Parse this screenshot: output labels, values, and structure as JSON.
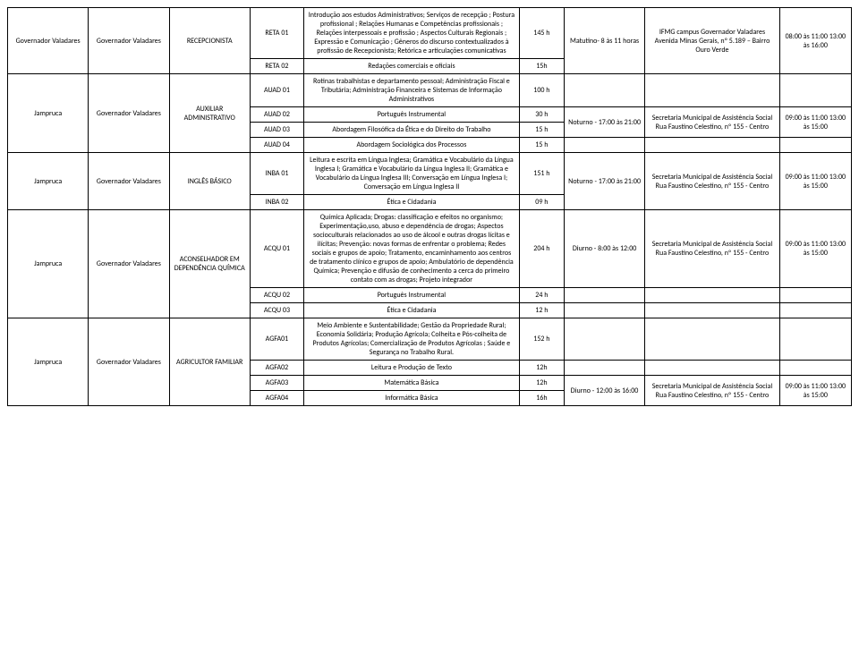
{
  "rows": [
    {
      "city": "Governador Valadares",
      "region": "Governador Valadares",
      "course": "RECEPCIONISTA",
      "mods": [
        {
          "code": "RETA 01",
          "desc": "Introdução aos estudos Administrativos; Serviços de recepção ; Postura profissional ; Relações Humanas e Competências profissionais ; Relações interpessoais e profissão ; Aspectos Culturais Regionais ; Expressão e Comunicação ; Gêneros do discurso contextualizados à profissão de Recepcionista; Retórica e articulações comunicativas",
          "hours": "145 h"
        },
        {
          "code": "RETA 02",
          "desc": "Redações comerciais e oficiais",
          "hours": "15h"
        }
      ],
      "shift": "Matutino- 8 às 11 horas",
      "loc": "IFMG campus Governador Valadares Avenida Minas Gerais, nº 5.189 – Bairro Ouro Verde",
      "time": "08:00 às 11:00 13:00 às 16:00"
    },
    {
      "city": "Jampruca",
      "region": "Governador Valadares",
      "course": "AUXILIAR ADMINISTRATIVO",
      "mods": [
        {
          "code": "AUAD 01",
          "desc": "Rotinas trabalhistas e departamento pessoal; Administração Fiscal e Tributária; Administração Financeira e Sistemas de Informação Administrativos",
          "hours": "100 h"
        },
        {
          "code": "AUAD 02",
          "desc": "Português Instrumental",
          "hours": "30 h"
        },
        {
          "code": "AUAD 03",
          "desc": "Abordagem Filosófica da Ética e do Direito do Trabalho",
          "hours": "15 h"
        },
        {
          "code": "AUAD 04",
          "desc": "Abordagem Sociológica dos Processos",
          "hours": "15 h"
        }
      ],
      "shift": "Noturno - 17:00 às 21:00",
      "loc": "Secretaria Municipal de Assistência Social Rua Faustino Celestino, nº 155 - Centro",
      "time": "09:00 às 11:00 13:00 às 15:00",
      "infoSpan": [
        1,
        2
      ]
    },
    {
      "city": "Jampruca",
      "region": "Governador Valadares",
      "course": "INGLÊS BÁSICO",
      "mods": [
        {
          "code": "INBA 01",
          "desc": "Leitura e escrita em Língua Inglesa; Gramática e Vocabulário da Língua Inglesa I; Gramática e Vocabulário da Língua Inglesa II; Gramática e Vocabulário da Língua Inglesa III; Conversação em Língua Inglesa I; Conversação em Língua Inglesa II",
          "hours": "151 h"
        },
        {
          "code": "INBA 02",
          "desc": "Ética e Cidadania",
          "hours": "09 h"
        }
      ],
      "shift": "Noturno - 17:00 às 21:00",
      "loc": "Secretaria Municipal de Assistência Social Rua Faustino Celestino, nº 155 - Centro",
      "time": "09:00 às 11:00 13:00 às 15:00"
    },
    {
      "city": "Jampruca",
      "region": "Governador Valadares",
      "course": "ACONSELHADOR EM DEPENDÊNCIA QUÍMICA",
      "mods": [
        {
          "code": "ACQU 01",
          "desc": "Química Aplicada; Drogas: classificação e efeitos no organismo; Experimentação,uso, abuso e dependência de drogas; Aspectos socioculturais relacionados ao uso de álcool e outras drogas lícitas e ilícitas; Prevenção: novas formas de enfrentar o problema; Redes sociais e grupos de apoio; Tratamento, encaminhamento aos centros de tratamento clínico e grupos de apoio; Ambulatório de dependência Química; Prevenção e difusão de conhecimento a cerca do primeiro contato com as drogas; Projeto integrador",
          "hours": "204 h"
        },
        {
          "code": "ACQU 02",
          "desc": "Português Instrumental",
          "hours": "24 h"
        },
        {
          "code": "ACQU 03",
          "desc": "Ética e Cidadania",
          "hours": "12 h"
        }
      ],
      "shift": "Diurno - 8:00 às 12:00",
      "loc": "Secretaria Municipal de Assistência Social Rua Faustino Celestino, nº 155 - Centro",
      "time": "09:00 às 11:00 13:00 às 15:00",
      "infoSpan": [
        0,
        1
      ]
    },
    {
      "city": "Jampruca",
      "region": "Governador Valadares",
      "course": "AGRICULTOR FAMILIAR",
      "mods": [
        {
          "code": "AGFA01",
          "desc": "Meio Ambiente e Sustentabilidade; Gestão da Propriedade Rural; Economia Solidária; Produção Agrícola; Colheita e Pós-colheita de Produtos Agrícolas; Comercialização de Produtos Agrícolas ; Saúde e Segurança no Trabalho Rural.",
          "hours": "152 h"
        },
        {
          "code": "AGFA02",
          "desc": "Leitura e Produção de Texto",
          "hours": "12h"
        },
        {
          "code": "AGFA03",
          "desc": "Matemática Básica",
          "hours": "12h"
        },
        {
          "code": "AGFA04",
          "desc": "Informática Básica",
          "hours": "16h"
        }
      ],
      "shift": "Diurno - 12:00 às 16:00",
      "loc": "Secretaria Municipal de Assistência Social Rua Faustino Celestino, nº 155 - Centro",
      "time": "09:00 às 11:00 13:00 às 15:00",
      "infoSpan": [
        2,
        2
      ]
    }
  ]
}
